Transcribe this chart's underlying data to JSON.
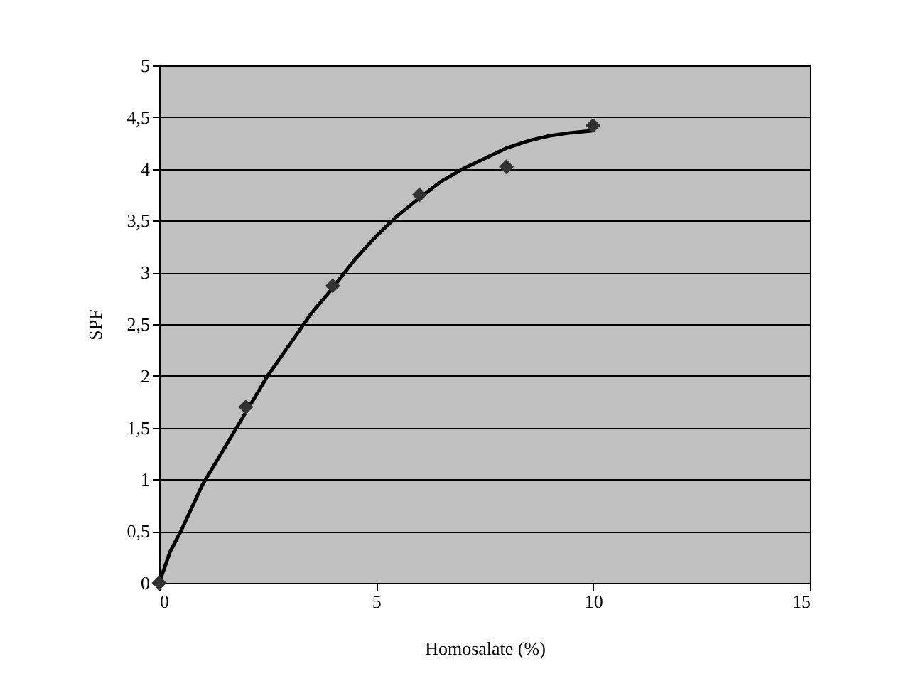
{
  "chart_data": {
    "type": "scatter",
    "xlabel": "Homosalate (%)",
    "ylabel": "SPF",
    "xlim": [
      0,
      15
    ],
    "xticks": [
      0,
      5,
      10,
      15
    ],
    "ylim": [
      0,
      5
    ],
    "yticks": [
      0,
      {
        "value": 0.5,
        "label": "0,5"
      },
      1,
      {
        "value": 1.5,
        "label": "1,5"
      },
      2,
      {
        "value": 2.5,
        "label": "2,5"
      },
      3,
      {
        "value": 3.5,
        "label": "3,5"
      },
      4,
      {
        "value": 4.5,
        "label": "4,5"
      },
      5
    ],
    "grid": "y",
    "series": [
      {
        "type": "line",
        "color": "#000000",
        "line_style": "solid",
        "marker": "none",
        "x": [
          0,
          0.25,
          0.5,
          1,
          1.5,
          2,
          2.5,
          3,
          3.5,
          4,
          4.5,
          5,
          5.5,
          6,
          6.5,
          7,
          7.5,
          8,
          8.5,
          9,
          9.5,
          10
        ],
        "values": [
          0,
          0.3,
          0.5,
          0.95,
          1.3,
          1.65,
          2.0,
          2.3,
          2.6,
          2.85,
          3.12,
          3.35,
          3.55,
          3.72,
          3.88,
          4.0,
          4.1,
          4.2,
          4.27,
          4.32,
          4.35,
          4.37
        ]
      },
      {
        "type": "scatter",
        "color": "#333333",
        "marker": "diamond",
        "x": [
          0,
          2,
          4,
          6,
          8,
          10
        ],
        "values": [
          0,
          1.7,
          2.87,
          3.75,
          4.02,
          4.42
        ]
      }
    ]
  }
}
